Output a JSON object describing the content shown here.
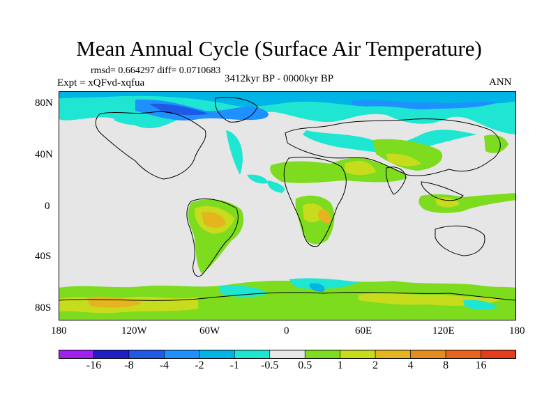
{
  "title": "Mean Annual Cycle (Surface Air Temperature)",
  "stats": "rmsd= 0.664297 diff= 0.0710683",
  "experiment": "Expt = xQFvd-xqfua",
  "period": "3412kyr BP - 0000kyr BP",
  "season": "ANN",
  "lat_labels": [
    "80N",
    "40N",
    "0",
    "40S",
    "80S"
  ],
  "lon_labels": [
    "180",
    "120W",
    "60W",
    "0",
    "60E",
    "120E",
    "180"
  ],
  "colorbar": {
    "colors": [
      "#a020f0",
      "#2020c8",
      "#1e5ae6",
      "#1e90ff",
      "#00b4e6",
      "#1ee6d2",
      "#e6e6e6",
      "#7ddc1e",
      "#c8dc1e",
      "#e6b41e",
      "#e68c1e",
      "#e6641e",
      "#e63c1e"
    ],
    "labels": [
      "-16",
      "-8",
      "-4",
      "-2",
      "-1",
      "-0.5",
      "0.5",
      "1",
      "2",
      "4",
      "8",
      "16"
    ]
  },
  "colors": {
    "background": "#e6e6e6",
    "cyan": "#1ee6d2",
    "light_blue": "#00b4e6",
    "blue": "#1e90ff",
    "dark_blue": "#1e5ae6",
    "green": "#7ddc1e",
    "yellow_green": "#c8dc1e",
    "orange": "#e6b41e"
  }
}
